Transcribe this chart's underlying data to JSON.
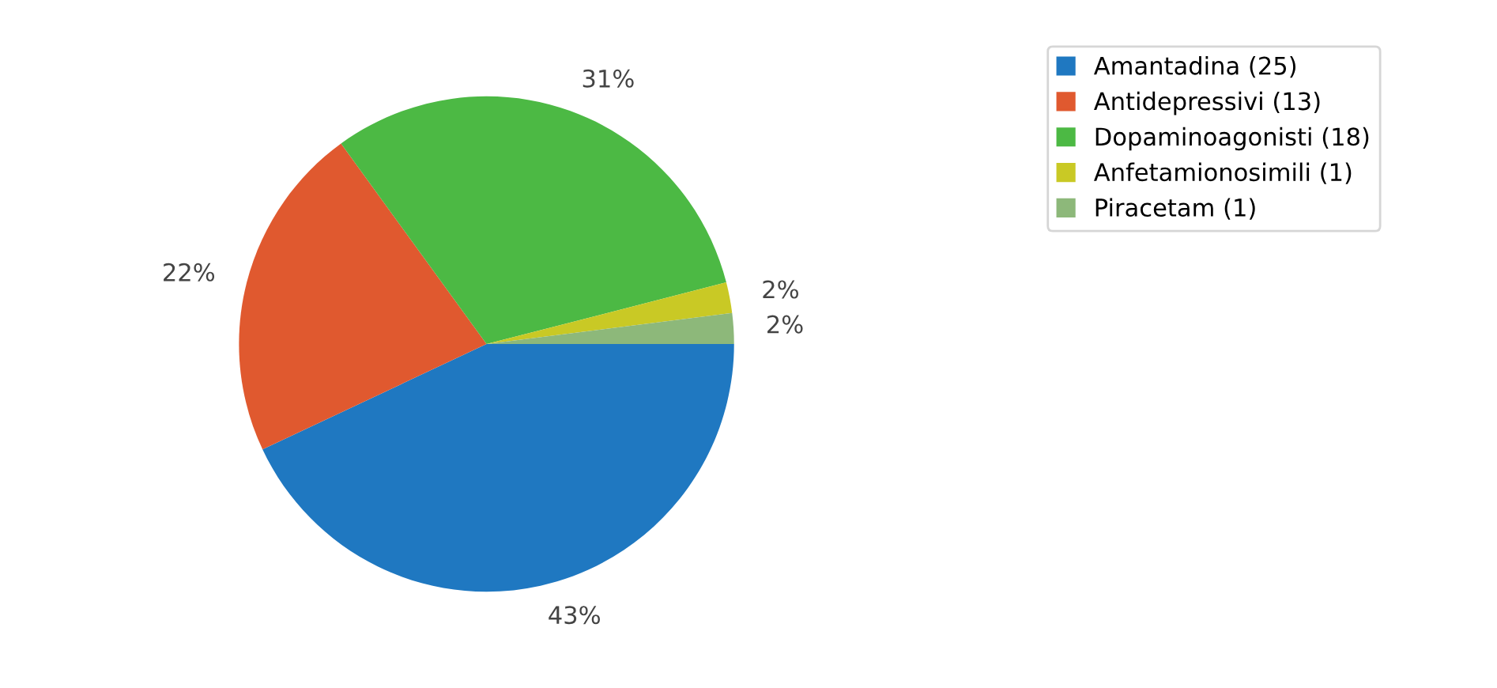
{
  "chart_data": {
    "type": "pie",
    "categories": [
      "Amantadina (25)",
      "Antidepressivi (13)",
      "Dopaminoagonisti (18)",
      "Anfetamionosimili (1)",
      "Piracetam (1)"
    ],
    "values": [
      43,
      22,
      31,
      2,
      2
    ],
    "value_labels": [
      "43%",
      "22%",
      "31%",
      "2%",
      "2%"
    ],
    "colors": [
      "#1f78c1",
      "#e0592f",
      "#4cb944",
      "#c9c925",
      "#8db87a"
    ],
    "legend": "top right"
  }
}
